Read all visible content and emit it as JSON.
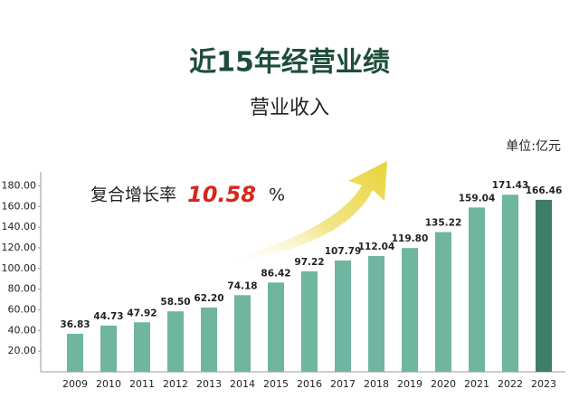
{
  "chart_data": {
    "type": "bar",
    "title": "近15年经营业绩",
    "subtitle": "营业收入",
    "unit_label": "单位:亿元",
    "annotation": {
      "prefix": "复合增长率",
      "rate": "10.58",
      "suffix": "%"
    },
    "categories": [
      "2009",
      "2010",
      "2011",
      "2012",
      "2013",
      "2014",
      "2015",
      "2016",
      "2017",
      "2018",
      "2019",
      "2020",
      "2021",
      "2022",
      "2023"
    ],
    "values": [
      36.83,
      44.73,
      47.92,
      58.5,
      62.2,
      74.18,
      86.42,
      97.22,
      107.79,
      112.04,
      119.8,
      135.22,
      159.04,
      171.43,
      166.46
    ],
    "value_labels": [
      "36.83",
      "44.73",
      "47.92",
      "58.50",
      "62.20",
      "74.18",
      "86.42",
      "97.22",
      "107.79",
      "112.04",
      "119.80",
      "135.22",
      "159.04",
      "171.43",
      "166.46"
    ],
    "colors": [
      "#6fb5a0",
      "#6fb5a0",
      "#6fb5a0",
      "#6fb5a0",
      "#6fb5a0",
      "#6fb5a0",
      "#6fb5a0",
      "#6fb5a0",
      "#6fb5a0",
      "#6fb5a0",
      "#6fb5a0",
      "#6fb5a0",
      "#6fb5a0",
      "#6fb5a0",
      "#3f7d68"
    ],
    "ylim": [
      0,
      190
    ],
    "yticks": [
      {
        "value": 20,
        "label": "20.00"
      },
      {
        "value": 40,
        "label": "40.00"
      },
      {
        "value": 60,
        "label": "60.00"
      },
      {
        "value": 80,
        "label": "80.00"
      },
      {
        "value": 100,
        "label": "100.00"
      },
      {
        "value": 120,
        "label": "120.00"
      },
      {
        "value": 140,
        "label": "140.00"
      },
      {
        "value": 160,
        "label": "160.00"
      },
      {
        "value": 180,
        "label": "180.00"
      }
    ]
  }
}
